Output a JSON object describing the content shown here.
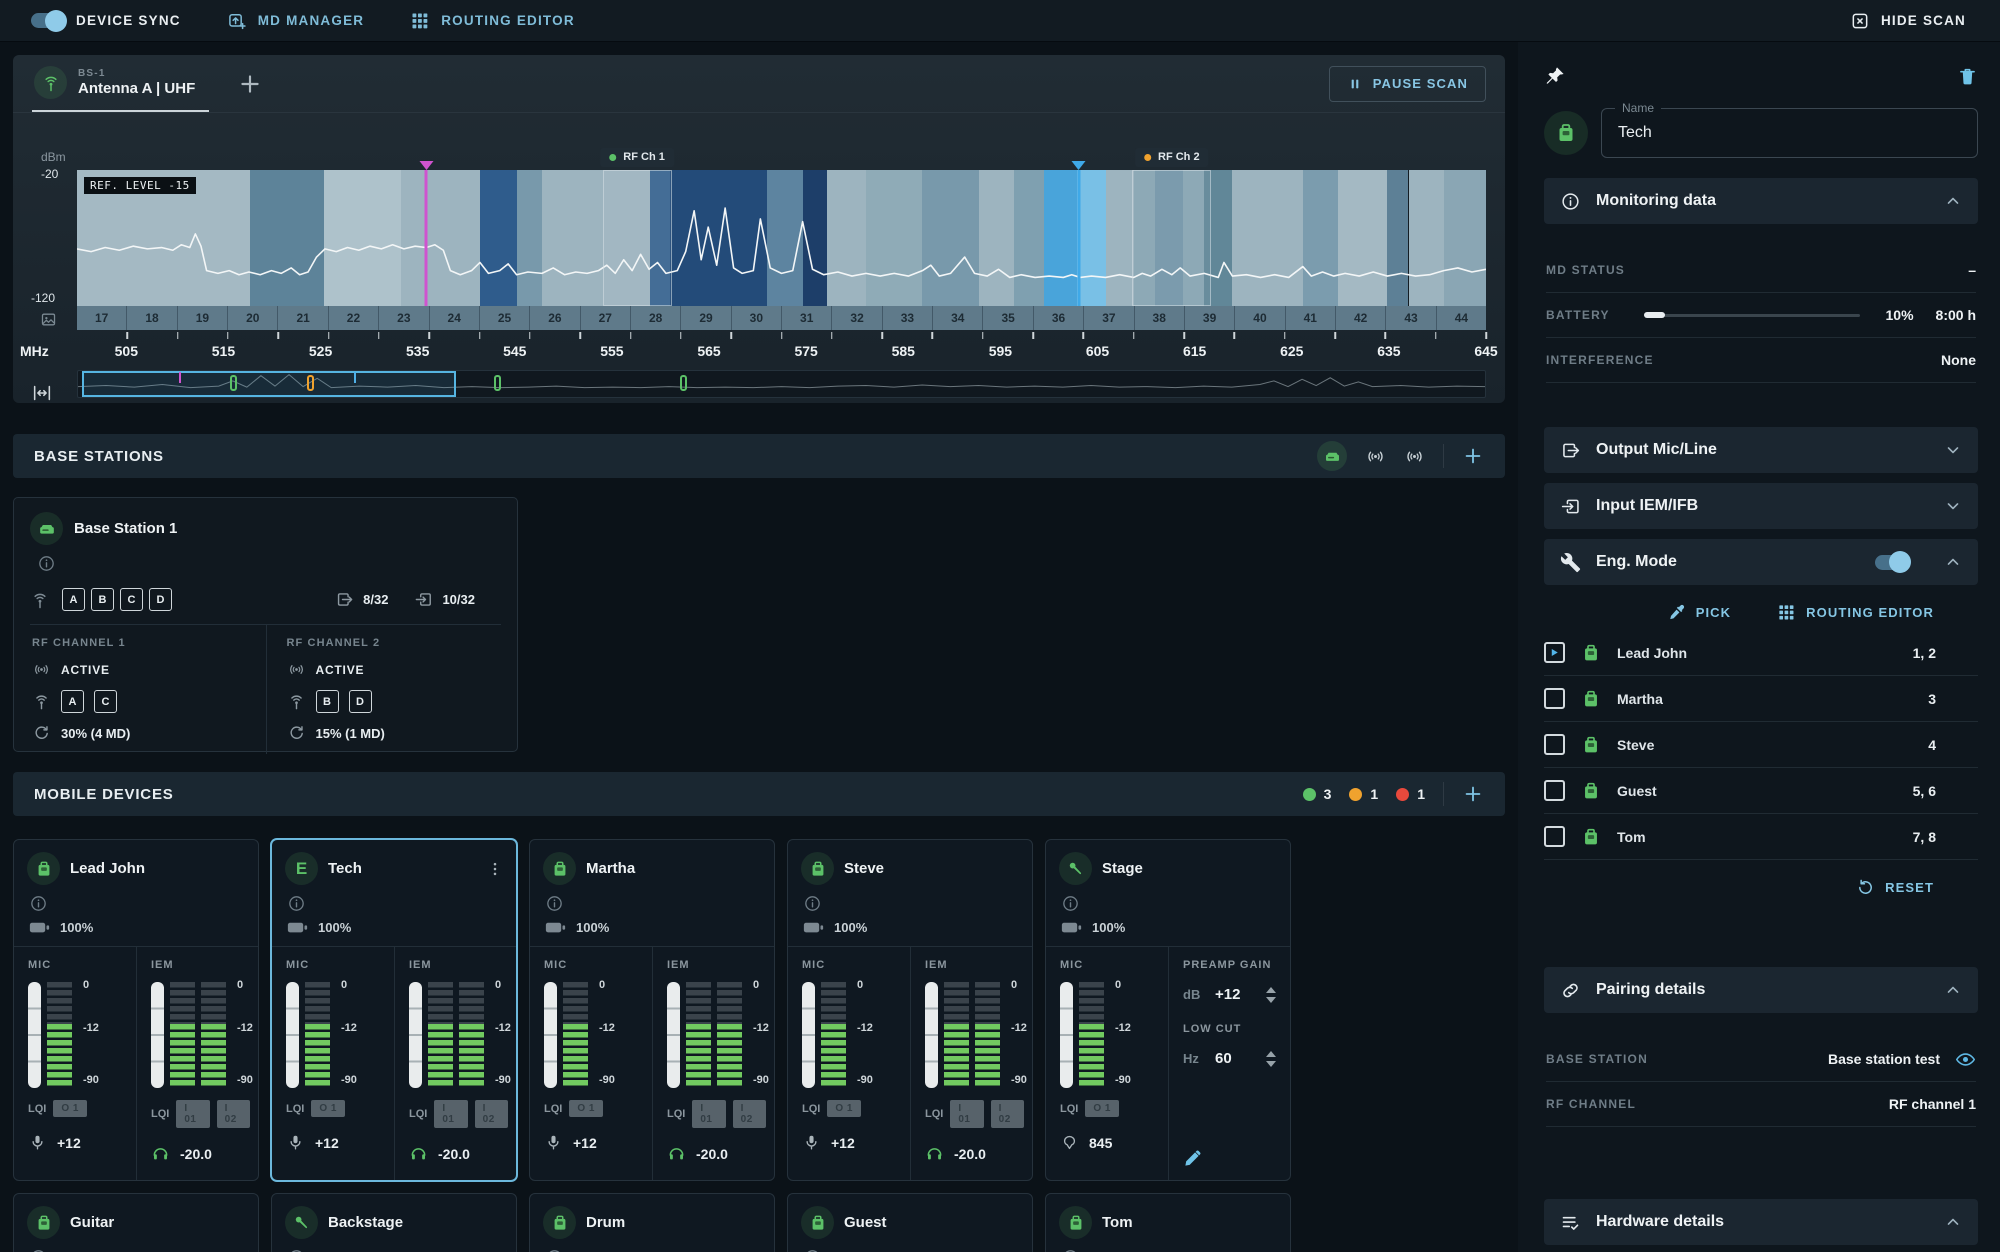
{
  "topbar": {
    "device_sync": "DEVICE SYNC",
    "md_manager": "MD MANAGER",
    "routing_editor": "ROUTING EDITOR",
    "hide_scan": "HIDE SCAN"
  },
  "scan": {
    "tab": {
      "id": "BS-1",
      "label": "Antenna A | UHF"
    },
    "pause_label": "PAUSE SCAN",
    "ref_level": "REF. LEVEL -15",
    "axis": {
      "unit": "dBm",
      "top": "-20",
      "bottom": "-120",
      "mhz": "MHz"
    },
    "channels": [
      "17",
      "18",
      "19",
      "20",
      "21",
      "22",
      "23",
      "24",
      "25",
      "26",
      "27",
      "28",
      "29",
      "30",
      "31",
      "32",
      "33",
      "34",
      "35",
      "36",
      "37",
      "38",
      "39",
      "40",
      "41",
      "42",
      "43",
      "44"
    ],
    "mhz_labels": [
      "505",
      "515",
      "525",
      "535",
      "545",
      "555",
      "565",
      "575",
      "585",
      "595",
      "605",
      "615",
      "625",
      "635",
      "645"
    ],
    "bands": [
      [
        0,
        12.3,
        "#a4b9c3"
      ],
      [
        12.3,
        5.2,
        "#5d8399"
      ],
      [
        17.5,
        5.5,
        "#aec2cb"
      ],
      [
        23,
        5.6,
        "#9db4bf"
      ],
      [
        28.6,
        2.6,
        "#2f5c8c"
      ],
      [
        31.2,
        1.8,
        "#7899ab"
      ],
      [
        33,
        7.7,
        "#9db4bf"
      ],
      [
        40.7,
        1.4,
        "#3a6691"
      ],
      [
        42.1,
        6.9,
        "#234b79"
      ],
      [
        49,
        2.5,
        "#5d84a0"
      ],
      [
        51.5,
        1.7,
        "#1d3e69"
      ],
      [
        53.2,
        2.8,
        "#9db4bf"
      ],
      [
        56,
        4,
        "#8fabb7"
      ],
      [
        60,
        4,
        "#7899ab"
      ],
      [
        64,
        2.5,
        "#9db4bf"
      ],
      [
        66.5,
        2.1,
        "#7fa0b0"
      ],
      [
        68.6,
        2.4,
        "#49a4da"
      ],
      [
        71,
        2,
        "#79c0e6"
      ],
      [
        73,
        2,
        "#9db4bf"
      ],
      [
        75,
        1.5,
        "#87a5b3"
      ],
      [
        76.5,
        2,
        "#7496a9"
      ],
      [
        78.5,
        1.5,
        "#87a5b3"
      ],
      [
        80,
        2,
        "#618798"
      ],
      [
        82,
        5,
        "#9db4bf"
      ],
      [
        87,
        2.5,
        "#7b9cae"
      ],
      [
        89.5,
        3.5,
        "#a4b9c3"
      ],
      [
        93,
        1.5,
        "#5d8096"
      ],
      [
        94.5,
        2.5,
        "#9db4bf"
      ],
      [
        97,
        3,
        "#8aa6b4"
      ]
    ],
    "trace": [
      [
        0,
        58
      ],
      [
        1,
        60
      ],
      [
        2,
        57
      ],
      [
        3,
        59
      ],
      [
        4,
        56
      ],
      [
        5,
        58
      ],
      [
        6,
        57
      ],
      [
        6.8,
        59
      ],
      [
        7.4,
        55
      ],
      [
        8,
        57
      ],
      [
        8.4,
        47
      ],
      [
        8.8,
        56
      ],
      [
        9.2,
        74
      ],
      [
        10,
        76
      ],
      [
        10.8,
        74
      ],
      [
        11.5,
        77
      ],
      [
        12.2,
        75
      ],
      [
        13,
        77
      ],
      [
        13.8,
        74
      ],
      [
        14.5,
        76
      ],
      [
        15.2,
        72
      ],
      [
        15.8,
        77
      ],
      [
        16.4,
        75
      ],
      [
        17,
        64
      ],
      [
        17.6,
        58
      ],
      [
        18.4,
        60
      ],
      [
        19.2,
        57
      ],
      [
        20,
        59
      ],
      [
        20.8,
        56
      ],
      [
        21.6,
        58
      ],
      [
        22.4,
        55
      ],
      [
        23.2,
        58
      ],
      [
        24,
        56
      ],
      [
        24.8,
        57
      ],
      [
        25.4,
        55
      ],
      [
        26,
        59
      ],
      [
        26.5,
        74
      ],
      [
        27.2,
        77
      ],
      [
        28,
        74
      ],
      [
        28.6,
        68
      ],
      [
        29.2,
        76
      ],
      [
        30,
        74
      ],
      [
        30.6,
        69
      ],
      [
        31.2,
        77
      ],
      [
        32,
        75
      ],
      [
        33,
        76
      ],
      [
        33.8,
        72
      ],
      [
        34.6,
        77
      ],
      [
        35.4,
        75
      ],
      [
        36.2,
        76
      ],
      [
        37,
        74
      ],
      [
        37.6,
        70
      ],
      [
        38.2,
        76
      ],
      [
        38.8,
        66
      ],
      [
        39.4,
        74
      ],
      [
        40,
        62
      ],
      [
        40.6,
        73
      ],
      [
        41.2,
        68
      ],
      [
        41.8,
        76
      ],
      [
        42.6,
        74
      ],
      [
        43.2,
        60
      ],
      [
        43.8,
        30
      ],
      [
        44.3,
        66
      ],
      [
        44.8,
        42
      ],
      [
        45.4,
        70
      ],
      [
        46,
        28
      ],
      [
        46.6,
        72
      ],
      [
        47.2,
        76
      ],
      [
        48,
        74
      ],
      [
        48.5,
        36
      ],
      [
        49.2,
        72
      ],
      [
        50,
        76
      ],
      [
        50.8,
        74
      ],
      [
        51.5,
        38
      ],
      [
        52.2,
        73
      ],
      [
        53,
        77
      ],
      [
        54,
        75
      ],
      [
        55,
        78
      ],
      [
        56,
        76
      ],
      [
        57,
        78
      ],
      [
        58,
        76
      ],
      [
        59,
        78
      ],
      [
        60,
        74
      ],
      [
        60.6,
        70
      ],
      [
        61.2,
        78
      ],
      [
        62,
        76
      ],
      [
        63,
        64
      ],
      [
        63.7,
        76
      ],
      [
        64.6,
        78
      ],
      [
        65.4,
        73
      ],
      [
        66.2,
        79
      ],
      [
        67,
        77
      ],
      [
        68,
        79
      ],
      [
        69,
        78
      ],
      [
        70,
        79
      ],
      [
        70.6,
        77
      ],
      [
        71.2,
        79
      ],
      [
        72,
        78
      ],
      [
        73,
        79
      ],
      [
        74,
        77
      ],
      [
        75,
        79
      ],
      [
        75.6,
        76
      ],
      [
        76.2,
        78
      ],
      [
        77,
        73
      ],
      [
        77.7,
        77
      ],
      [
        78.3,
        72
      ],
      [
        79,
        78
      ],
      [
        80,
        76
      ],
      [
        81,
        79
      ],
      [
        81.4,
        68
      ],
      [
        82,
        78
      ],
      [
        83,
        77
      ],
      [
        84,
        79
      ],
      [
        85,
        77
      ],
      [
        86,
        79
      ],
      [
        87,
        71
      ],
      [
        87.6,
        78
      ],
      [
        88.4,
        75
      ],
      [
        89.2,
        78
      ],
      [
        90,
        76
      ],
      [
        91,
        78
      ],
      [
        92,
        75
      ],
      [
        93,
        78
      ],
      [
        94,
        76
      ],
      [
        95,
        78
      ],
      [
        96,
        77
      ],
      [
        97,
        74
      ],
      [
        98,
        72
      ],
      [
        99,
        75
      ],
      [
        100,
        73
      ]
    ],
    "markers": {
      "rf1": {
        "label": "RF Ch 1",
        "x": 37.3,
        "w": 4.9,
        "color": "#5cc168"
      },
      "rf2": {
        "label": "RF Ch 2",
        "x": 74.9,
        "w": 5.6,
        "color": "#f0a22e"
      },
      "magenta_x": 24.8,
      "magenta_color": "#cf54cf",
      "blue_x": 71.1,
      "blue_color": "#3fa9e8"
    },
    "minimap": {
      "sel_x": 0.3,
      "sel_w": 26.6,
      "markers": [
        [
          7.2,
          "tick",
          "#cf54cf"
        ],
        [
          10.8,
          "rect",
          "#5cc168"
        ],
        [
          16.3,
          "rect",
          "#f0a22e"
        ],
        [
          19.6,
          "tick",
          "#4fb0e8"
        ],
        [
          29.6,
          "rect",
          "#5cc168"
        ],
        [
          42.8,
          "rect",
          "#5cc168"
        ]
      ],
      "trace": [
        [
          0,
          60
        ],
        [
          2,
          56
        ],
        [
          4,
          62
        ],
        [
          6,
          52
        ],
        [
          8,
          64
        ],
        [
          10,
          58
        ],
        [
          11,
          38
        ],
        [
          12,
          62
        ],
        [
          13,
          18
        ],
        [
          14,
          58
        ],
        [
          15,
          14
        ],
        [
          16,
          60
        ],
        [
          17,
          28
        ],
        [
          18,
          64
        ],
        [
          20,
          58
        ],
        [
          22,
          62
        ],
        [
          24,
          56
        ],
        [
          26,
          64
        ],
        [
          28,
          60
        ],
        [
          30,
          64
        ],
        [
          32,
          62
        ],
        [
          34,
          58
        ],
        [
          36,
          64
        ],
        [
          38,
          62
        ],
        [
          40,
          64
        ],
        [
          42,
          60
        ],
        [
          44,
          64
        ],
        [
          46,
          62
        ],
        [
          48,
          64
        ],
        [
          50,
          60
        ],
        [
          52,
          64
        ],
        [
          54,
          58
        ],
        [
          56,
          56
        ],
        [
          58,
          62
        ],
        [
          60,
          54
        ],
        [
          62,
          60
        ],
        [
          64,
          56
        ],
        [
          66,
          62
        ],
        [
          68,
          58
        ],
        [
          70,
          62
        ],
        [
          72,
          56
        ],
        [
          74,
          62
        ],
        [
          76,
          60
        ],
        [
          78,
          64
        ],
        [
          80,
          58
        ],
        [
          82,
          62
        ],
        [
          84,
          52
        ],
        [
          85,
          38
        ],
        [
          86,
          60
        ],
        [
          87,
          32
        ],
        [
          88,
          56
        ],
        [
          89,
          26
        ],
        [
          90,
          58
        ],
        [
          91,
          42
        ],
        [
          92,
          60
        ],
        [
          94,
          56
        ],
        [
          96,
          62
        ],
        [
          98,
          58
        ],
        [
          100,
          60
        ]
      ]
    }
  },
  "base_stations": {
    "title": "BASE STATIONS",
    "card": {
      "title": "Base Station 1",
      "antennas": [
        "A",
        "B",
        "C",
        "D"
      ],
      "out_count": "8/32",
      "in_count": "10/32",
      "channels": [
        {
          "label": "RF CHANNEL 1",
          "status": "ACTIVE",
          "antennas": [
            "A",
            "C"
          ],
          "load": "30% (4 MD)"
        },
        {
          "label": "RF CHANNEL 2",
          "status": "ACTIVE",
          "antennas": [
            "B",
            "D"
          ],
          "load": "15% (1 MD)"
        }
      ]
    }
  },
  "mobile_devices": {
    "title": "MOBILE DEVICES",
    "counts": [
      [
        "#5cc168",
        "3"
      ],
      [
        "#f0a22e",
        "1"
      ],
      [
        "#e8493c",
        "1"
      ]
    ],
    "lqi_label": "LQI",
    "scale": [
      "0",
      "-12",
      "-90"
    ],
    "cards": [
      {
        "name": "Lead John",
        "icon": "bodypack",
        "selected": false,
        "kebab": false,
        "battery": "100%",
        "cols": [
          {
            "label": "MIC",
            "meters": 1,
            "lqi": [
              "O 1"
            ],
            "icon": "mic-small",
            "value": "+12"
          },
          {
            "label": "IEM",
            "meters": 2,
            "lqi": [
              "I 01",
              "I 02"
            ],
            "icon": "headphone",
            "value": "-20.0"
          }
        ]
      },
      {
        "name": "Tech",
        "icon": "letter",
        "icon_letter": "E",
        "selected": true,
        "kebab": true,
        "battery": "100%",
        "cols": [
          {
            "label": "MIC",
            "meters": 1,
            "lqi": [
              "O 1"
            ],
            "icon": "mic-small",
            "value": "+12"
          },
          {
            "label": "IEM",
            "meters": 2,
            "lqi": [
              "I 01",
              "I 02"
            ],
            "icon": "headphone",
            "value": "-20.0"
          }
        ]
      },
      {
        "name": "Martha",
        "icon": "bodypack",
        "selected": false,
        "kebab": false,
        "battery": "100%",
        "cols": [
          {
            "label": "MIC",
            "meters": 1,
            "lqi": [
              "O 1"
            ],
            "icon": "mic-small",
            "value": "+12"
          },
          {
            "label": "IEM",
            "meters": 2,
            "lqi": [
              "I 01",
              "I 02"
            ],
            "icon": "headphone",
            "value": "-20.0"
          }
        ]
      },
      {
        "name": "Steve",
        "icon": "bodypack",
        "selected": false,
        "kebab": false,
        "battery": "100%",
        "cols": [
          {
            "label": "MIC",
            "meters": 1,
            "lqi": [
              "O 1"
            ],
            "icon": "mic-small",
            "value": "+12"
          },
          {
            "label": "IEM",
            "meters": 2,
            "lqi": [
              "I 01",
              "I 02"
            ],
            "icon": "headphone",
            "value": "-20.0"
          }
        ]
      },
      {
        "name": "Stage",
        "icon": "mic-hand",
        "selected": false,
        "kebab": false,
        "battery": "100%",
        "cols": [
          {
            "label": "MIC",
            "meters": 1,
            "lqi": [
              "O 1"
            ],
            "icon": "capsule",
            "value": "845"
          }
        ],
        "controls": {
          "preamp_label": "PREAMP GAIN",
          "preamp_unit": "dB",
          "preamp_value": "+12",
          "lowcut_label": "LOW CUT",
          "lowcut_unit": "Hz",
          "lowcut_value": "60"
        }
      }
    ],
    "row2": [
      [
        "Guitar",
        "bodypack"
      ],
      [
        "Backstage",
        "mic-hand"
      ],
      [
        "Drum",
        "bodypack"
      ],
      [
        "Guest",
        "bodypack"
      ],
      [
        "Tom",
        "bodypack"
      ]
    ]
  },
  "sidebar": {
    "name_field": {
      "label": "Name",
      "value": "Tech"
    },
    "monitoring": {
      "title": "Monitoring data",
      "battery_pct": 10,
      "rows": [
        [
          "MD STATUS",
          "–",
          ""
        ],
        [
          "BATTERY",
          "10%",
          "8:00 h"
        ],
        [
          "INTERFERENCE",
          "None",
          ""
        ]
      ]
    },
    "output": {
      "title": "Output Mic/Line"
    },
    "input": {
      "title": "Input IEM/IFB"
    },
    "eng": {
      "title": "Eng. Mode",
      "pick": "PICK",
      "routing": "ROUTING EDITOR",
      "reset": "RESET",
      "devices": [
        [
          "Lead John",
          "1, 2",
          true
        ],
        [
          "Martha",
          "3",
          false
        ],
        [
          "Steve",
          "4",
          false
        ],
        [
          "Guest",
          "5, 6",
          false
        ],
        [
          "Tom",
          "7, 8",
          false
        ]
      ]
    },
    "pairing": {
      "title": "Pairing details",
      "rows": [
        [
          "BASE STATION",
          "Base station test",
          true
        ],
        [
          "RF CHANNEL",
          "RF channel 1",
          false
        ]
      ]
    },
    "hardware": {
      "title": "Hardware details"
    }
  }
}
